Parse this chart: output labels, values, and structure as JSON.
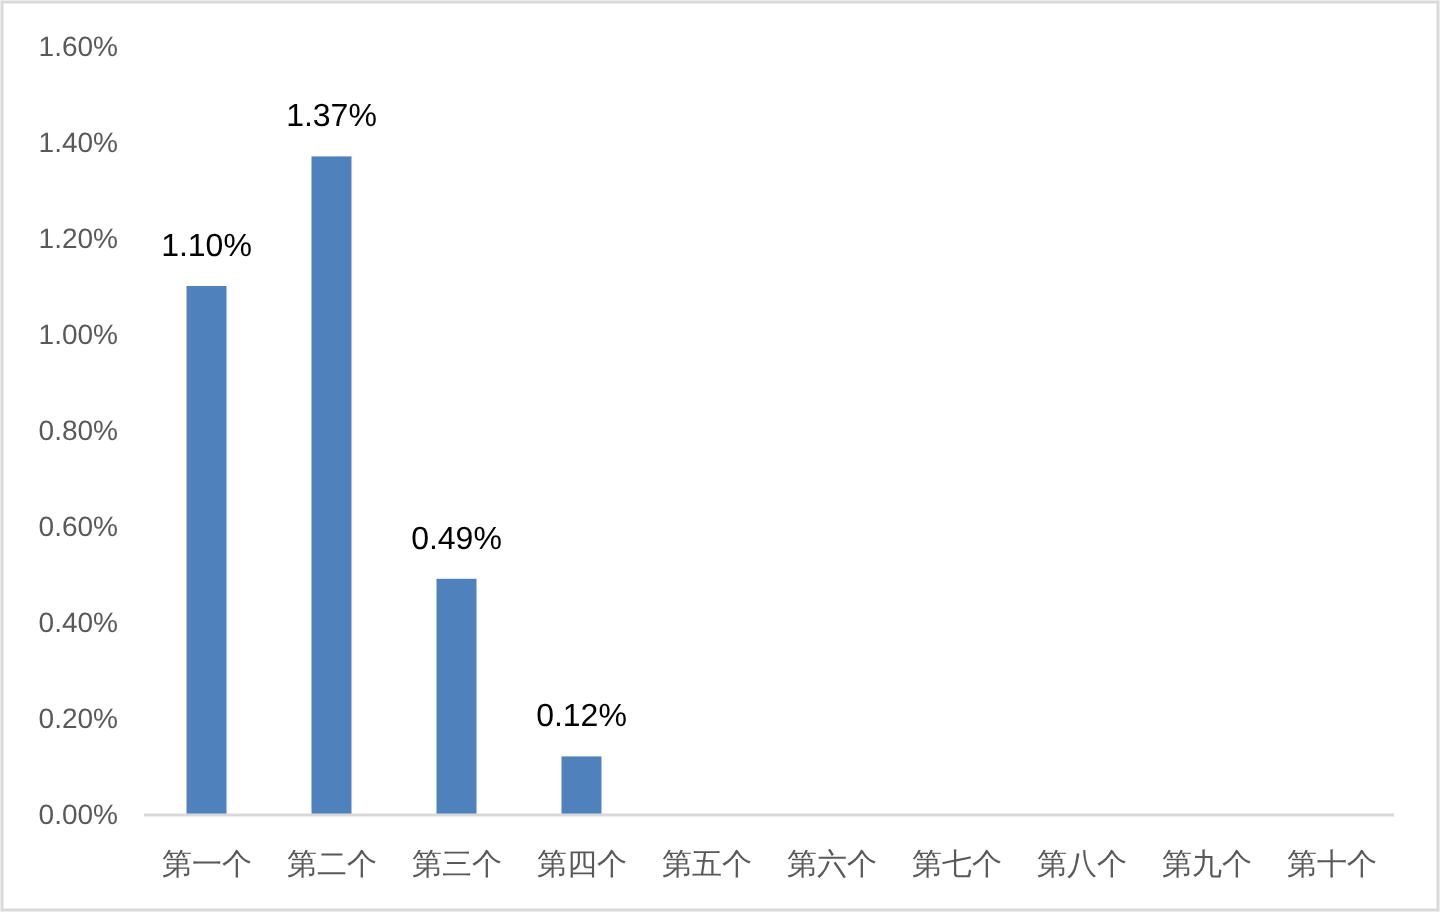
{
  "chart_data": {
    "type": "bar",
    "categories": [
      "第一个",
      "第二个",
      "第三个",
      "第四个",
      "第五个",
      "第六个",
      "第七个",
      "第八个",
      "第九个",
      "第十个"
    ],
    "values": [
      1.1,
      1.37,
      0.49,
      0.12,
      null,
      null,
      null,
      null,
      null,
      null
    ],
    "value_labels": [
      "1.10%",
      "1.37%",
      "0.49%",
      "0.12%",
      null,
      null,
      null,
      null,
      null,
      null
    ],
    "color": "#4f81bd",
    "ylim": [
      0,
      1.6
    ],
    "yticks": [
      {
        "value": 0,
        "label": "0.00%"
      },
      {
        "value": 0.2,
        "label": "0.20%"
      },
      {
        "value": 0.4,
        "label": "0.40%"
      },
      {
        "value": 0.6,
        "label": "0.60%"
      },
      {
        "value": 0.8,
        "label": "0.80%"
      },
      {
        "value": 1.0,
        "label": "1.00%"
      },
      {
        "value": 1.2,
        "label": "1.20%"
      },
      {
        "value": 1.4,
        "label": "1.40%"
      },
      {
        "value": 1.6,
        "label": "1.60%"
      }
    ],
    "grid": false
  }
}
